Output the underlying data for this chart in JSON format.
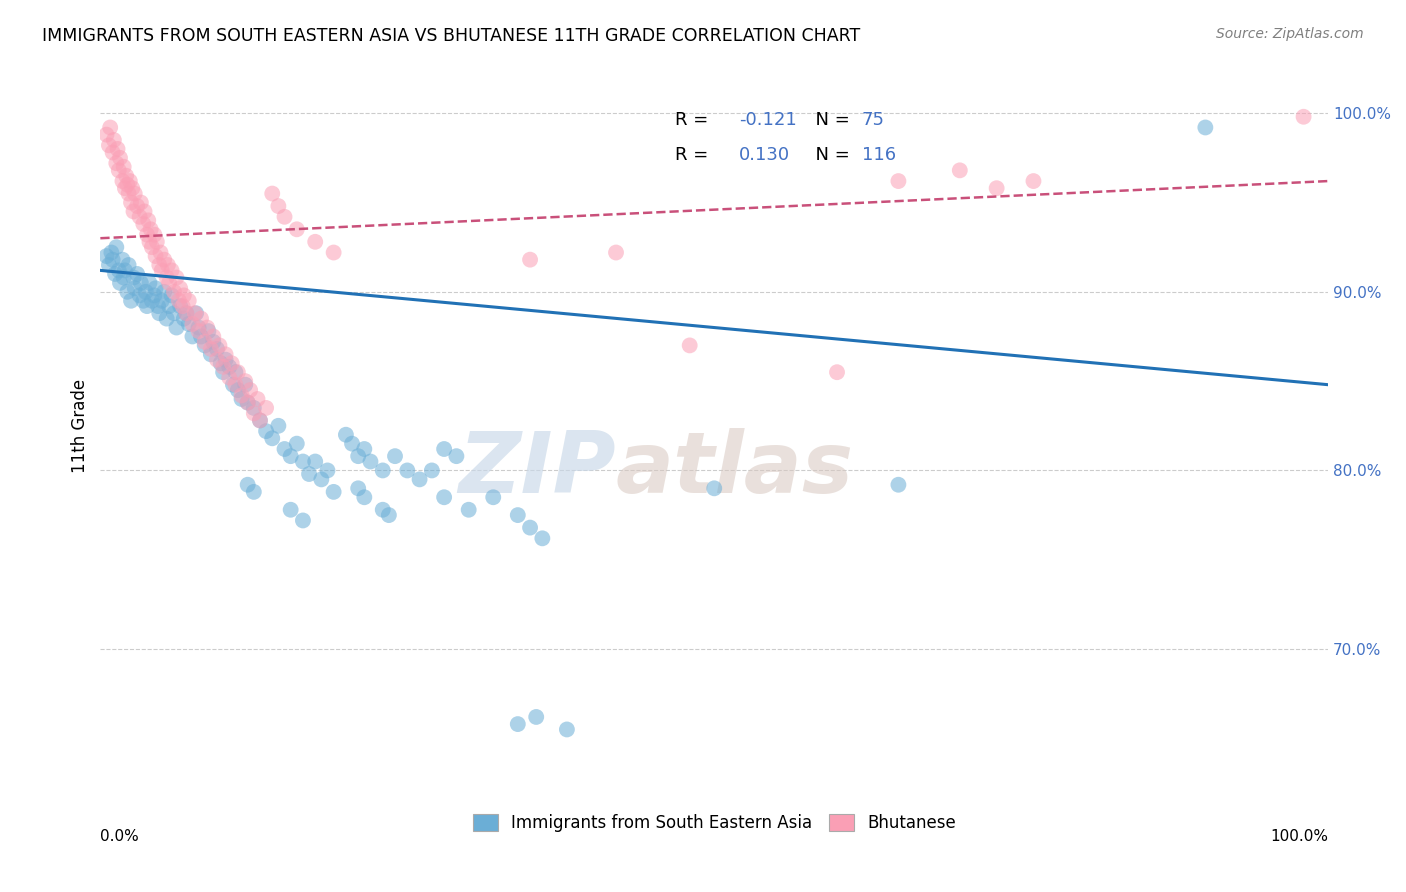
{
  "title": "IMMIGRANTS FROM SOUTH EASTERN ASIA VS BHUTANESE 11TH GRADE CORRELATION CHART",
  "source": "Source: ZipAtlas.com",
  "ylabel": "11th Grade",
  "ytick_labels": [
    "70.0%",
    "80.0%",
    "90.0%",
    "100.0%"
  ],
  "ytick_values": [
    0.7,
    0.8,
    0.9,
    1.0
  ],
  "xlim": [
    0.0,
    1.0
  ],
  "ylim": [
    0.62,
    1.03
  ],
  "legend_blue_R": "-0.121",
  "legend_blue_N": "75",
  "legend_pink_R": "0.130",
  "legend_pink_N": "116",
  "blue_color": "#6baed6",
  "pink_color": "#fa9fb5",
  "blue_line_color": "#2171b5",
  "pink_line_color": "#c9507a",
  "watermark_zip": "ZIP",
  "watermark_atlas": "atlas",
  "blue_scatter": [
    [
      0.005,
      0.92
    ],
    [
      0.007,
      0.915
    ],
    [
      0.009,
      0.922
    ],
    [
      0.01,
      0.918
    ],
    [
      0.012,
      0.91
    ],
    [
      0.013,
      0.925
    ],
    [
      0.015,
      0.912
    ],
    [
      0.016,
      0.905
    ],
    [
      0.018,
      0.918
    ],
    [
      0.019,
      0.908
    ],
    [
      0.02,
      0.912
    ],
    [
      0.022,
      0.9
    ],
    [
      0.023,
      0.915
    ],
    [
      0.025,
      0.895
    ],
    [
      0.027,
      0.908
    ],
    [
      0.028,
      0.902
    ],
    [
      0.03,
      0.91
    ],
    [
      0.032,
      0.898
    ],
    [
      0.033,
      0.905
    ],
    [
      0.035,
      0.895
    ],
    [
      0.037,
      0.9
    ],
    [
      0.038,
      0.892
    ],
    [
      0.04,
      0.905
    ],
    [
      0.042,
      0.895
    ],
    [
      0.044,
      0.898
    ],
    [
      0.045,
      0.902
    ],
    [
      0.047,
      0.892
    ],
    [
      0.048,
      0.888
    ],
    [
      0.05,
      0.895
    ],
    [
      0.052,
      0.9
    ],
    [
      0.054,
      0.885
    ],
    [
      0.056,
      0.892
    ],
    [
      0.058,
      0.898
    ],
    [
      0.06,
      0.888
    ],
    [
      0.062,
      0.88
    ],
    [
      0.065,
      0.892
    ],
    [
      0.068,
      0.885
    ],
    [
      0.07,
      0.888
    ],
    [
      0.072,
      0.882
    ],
    [
      0.075,
      0.875
    ],
    [
      0.078,
      0.888
    ],
    [
      0.08,
      0.88
    ],
    [
      0.082,
      0.875
    ],
    [
      0.085,
      0.87
    ],
    [
      0.088,
      0.878
    ],
    [
      0.09,
      0.865
    ],
    [
      0.092,
      0.872
    ],
    [
      0.095,
      0.868
    ],
    [
      0.098,
      0.86
    ],
    [
      0.1,
      0.855
    ],
    [
      0.102,
      0.862
    ],
    [
      0.105,
      0.858
    ],
    [
      0.108,
      0.848
    ],
    [
      0.11,
      0.855
    ],
    [
      0.112,
      0.845
    ],
    [
      0.115,
      0.84
    ],
    [
      0.118,
      0.848
    ],
    [
      0.12,
      0.838
    ],
    [
      0.125,
      0.835
    ],
    [
      0.13,
      0.828
    ],
    [
      0.135,
      0.822
    ],
    [
      0.14,
      0.818
    ],
    [
      0.145,
      0.825
    ],
    [
      0.15,
      0.812
    ],
    [
      0.155,
      0.808
    ],
    [
      0.16,
      0.815
    ],
    [
      0.165,
      0.805
    ],
    [
      0.17,
      0.798
    ],
    [
      0.175,
      0.805
    ],
    [
      0.18,
      0.795
    ],
    [
      0.185,
      0.8
    ],
    [
      0.19,
      0.788
    ],
    [
      0.2,
      0.82
    ],
    [
      0.205,
      0.815
    ],
    [
      0.21,
      0.808
    ],
    [
      0.215,
      0.812
    ],
    [
      0.22,
      0.805
    ],
    [
      0.23,
      0.8
    ],
    [
      0.24,
      0.808
    ],
    [
      0.25,
      0.8
    ],
    [
      0.26,
      0.795
    ],
    [
      0.27,
      0.8
    ],
    [
      0.28,
      0.785
    ],
    [
      0.3,
      0.778
    ],
    [
      0.32,
      0.785
    ],
    [
      0.34,
      0.775
    ],
    [
      0.35,
      0.768
    ],
    [
      0.36,
      0.762
    ],
    [
      0.28,
      0.812
    ],
    [
      0.29,
      0.808
    ],
    [
      0.155,
      0.778
    ],
    [
      0.165,
      0.772
    ],
    [
      0.21,
      0.79
    ],
    [
      0.215,
      0.785
    ],
    [
      0.23,
      0.778
    ],
    [
      0.235,
      0.775
    ],
    [
      0.12,
      0.792
    ],
    [
      0.125,
      0.788
    ],
    [
      0.5,
      0.79
    ],
    [
      0.65,
      0.792
    ],
    [
      0.9,
      0.992
    ],
    [
      0.355,
      0.662
    ],
    [
      0.38,
      0.655
    ],
    [
      0.34,
      0.658
    ]
  ],
  "pink_scatter": [
    [
      0.005,
      0.988
    ],
    [
      0.007,
      0.982
    ],
    [
      0.008,
      0.992
    ],
    [
      0.01,
      0.978
    ],
    [
      0.011,
      0.985
    ],
    [
      0.013,
      0.972
    ],
    [
      0.014,
      0.98
    ],
    [
      0.015,
      0.968
    ],
    [
      0.016,
      0.975
    ],
    [
      0.018,
      0.962
    ],
    [
      0.019,
      0.97
    ],
    [
      0.02,
      0.958
    ],
    [
      0.021,
      0.965
    ],
    [
      0.022,
      0.96
    ],
    [
      0.023,
      0.955
    ],
    [
      0.024,
      0.962
    ],
    [
      0.025,
      0.95
    ],
    [
      0.026,
      0.958
    ],
    [
      0.027,
      0.945
    ],
    [
      0.028,
      0.955
    ],
    [
      0.03,
      0.948
    ],
    [
      0.032,
      0.942
    ],
    [
      0.033,
      0.95
    ],
    [
      0.035,
      0.938
    ],
    [
      0.036,
      0.945
    ],
    [
      0.038,
      0.932
    ],
    [
      0.039,
      0.94
    ],
    [
      0.04,
      0.928
    ],
    [
      0.041,
      0.935
    ],
    [
      0.042,
      0.925
    ],
    [
      0.044,
      0.932
    ],
    [
      0.045,
      0.92
    ],
    [
      0.046,
      0.928
    ],
    [
      0.048,
      0.915
    ],
    [
      0.049,
      0.922
    ],
    [
      0.05,
      0.912
    ],
    [
      0.052,
      0.918
    ],
    [
      0.054,
      0.908
    ],
    [
      0.055,
      0.915
    ],
    [
      0.056,
      0.905
    ],
    [
      0.058,
      0.912
    ],
    [
      0.06,
      0.9
    ],
    [
      0.062,
      0.908
    ],
    [
      0.064,
      0.895
    ],
    [
      0.065,
      0.902
    ],
    [
      0.067,
      0.892
    ],
    [
      0.068,
      0.898
    ],
    [
      0.07,
      0.888
    ],
    [
      0.072,
      0.895
    ],
    [
      0.075,
      0.882
    ],
    [
      0.077,
      0.888
    ],
    [
      0.08,
      0.878
    ],
    [
      0.082,
      0.885
    ],
    [
      0.085,
      0.872
    ],
    [
      0.087,
      0.88
    ],
    [
      0.09,
      0.868
    ],
    [
      0.092,
      0.875
    ],
    [
      0.095,
      0.862
    ],
    [
      0.097,
      0.87
    ],
    [
      0.1,
      0.858
    ],
    [
      0.102,
      0.865
    ],
    [
      0.105,
      0.852
    ],
    [
      0.107,
      0.86
    ],
    [
      0.11,
      0.848
    ],
    [
      0.112,
      0.855
    ],
    [
      0.115,
      0.842
    ],
    [
      0.118,
      0.85
    ],
    [
      0.12,
      0.838
    ],
    [
      0.122,
      0.845
    ],
    [
      0.125,
      0.832
    ],
    [
      0.128,
      0.84
    ],
    [
      0.13,
      0.828
    ],
    [
      0.135,
      0.835
    ],
    [
      0.14,
      0.955
    ],
    [
      0.145,
      0.948
    ],
    [
      0.15,
      0.942
    ],
    [
      0.16,
      0.935
    ],
    [
      0.175,
      0.928
    ],
    [
      0.19,
      0.922
    ],
    [
      0.35,
      0.918
    ],
    [
      0.42,
      0.922
    ],
    [
      0.48,
      0.87
    ],
    [
      0.6,
      0.855
    ],
    [
      0.65,
      0.962
    ],
    [
      0.7,
      0.968
    ],
    [
      0.73,
      0.958
    ],
    [
      0.76,
      0.962
    ],
    [
      0.98,
      0.998
    ]
  ],
  "blue_trend_x": [
    0.0,
    1.0
  ],
  "blue_trend_y_start": 0.912,
  "blue_trend_y_end": 0.848,
  "pink_trend_x": [
    0.0,
    1.0
  ],
  "pink_trend_y_start": 0.93,
  "pink_trend_y_end": 0.962
}
